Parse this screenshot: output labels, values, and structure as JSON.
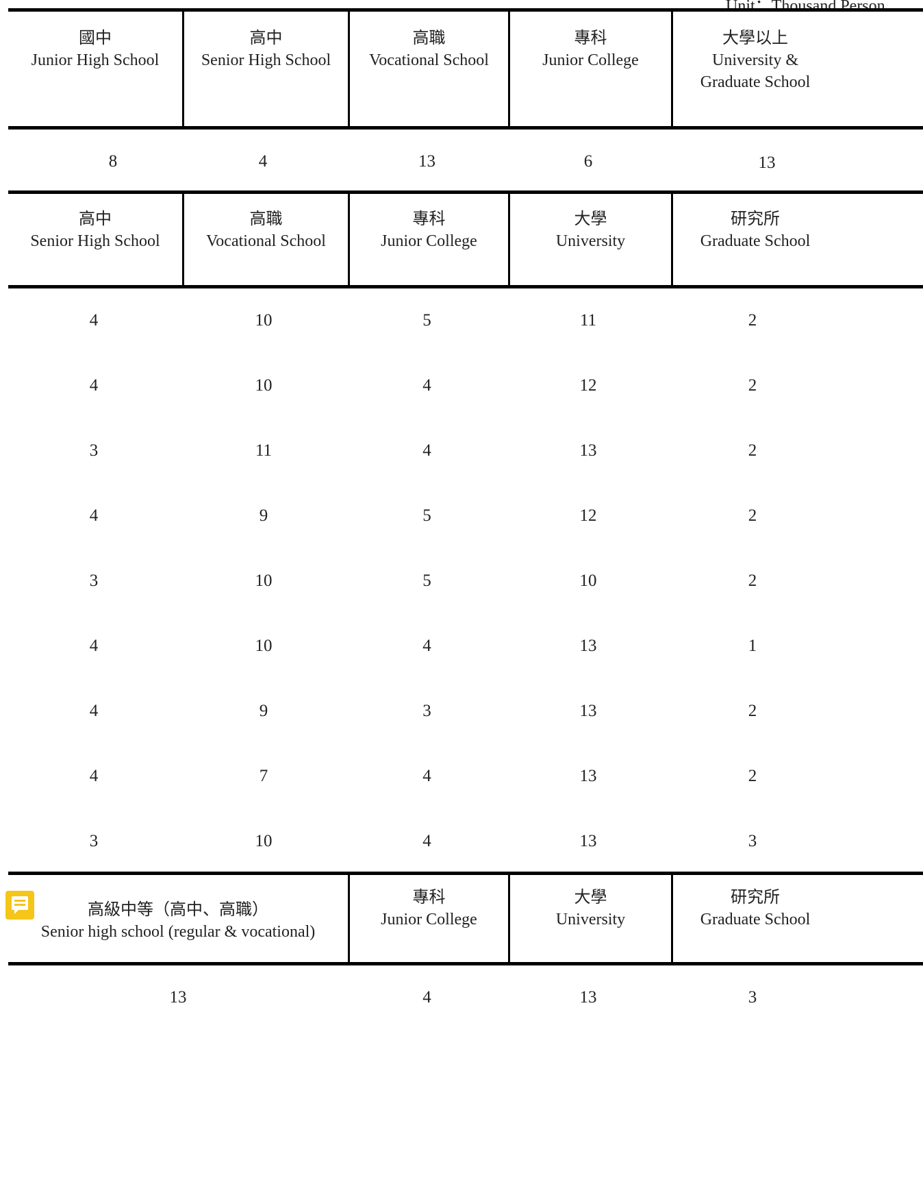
{
  "unit_label": "Unit：Thousand Person",
  "table1": {
    "headers": [
      {
        "zh": "國中",
        "en": [
          "Junior High School"
        ]
      },
      {
        "zh": "高中",
        "en": [
          "Senior High School"
        ]
      },
      {
        "zh": "高職",
        "en": [
          "Vocational School"
        ]
      },
      {
        "zh": "專科",
        "en": [
          "Junior College"
        ]
      },
      {
        "zh": "大學以上",
        "en": [
          "University &",
          "Graduate School"
        ]
      }
    ],
    "values": [
      "8",
      "4",
      "13",
      "6",
      "13"
    ]
  },
  "table2": {
    "headers": [
      {
        "zh": "高中",
        "en": [
          "Senior High School"
        ]
      },
      {
        "zh": "高職",
        "en": [
          "Vocational School"
        ]
      },
      {
        "zh": "專科",
        "en": [
          "Junior College"
        ]
      },
      {
        "zh": "大學",
        "en": [
          "University"
        ]
      },
      {
        "zh": "研究所",
        "en": [
          "Graduate School"
        ]
      }
    ],
    "rows": [
      [
        "4",
        "10",
        "5",
        "11",
        "2"
      ],
      [
        "4",
        "10",
        "4",
        "12",
        "2"
      ],
      [
        "3",
        "11",
        "4",
        "13",
        "2"
      ],
      [
        "4",
        "9",
        "5",
        "12",
        "2"
      ],
      [
        "3",
        "10",
        "5",
        "10",
        "2"
      ],
      [
        "4",
        "10",
        "4",
        "13",
        "1"
      ],
      [
        "4",
        "9",
        "3",
        "13",
        "2"
      ],
      [
        "4",
        "7",
        "4",
        "13",
        "2"
      ],
      [
        "3",
        "10",
        "4",
        "13",
        "3"
      ]
    ]
  },
  "table3": {
    "headers": [
      {
        "zh": "高級中等（高中、高職）",
        "en": [
          "Senior high school (regular & vocational)"
        ]
      },
      {
        "zh": "專科",
        "en": [
          "Junior College"
        ]
      },
      {
        "zh": "大學",
        "en": [
          "University"
        ]
      },
      {
        "zh": "研究所",
        "en": [
          "Graduate School"
        ]
      }
    ],
    "values": [
      "13",
      "4",
      "13",
      "3"
    ]
  },
  "icons": {
    "note": "comment-note-icon",
    "note_color": "#f5c518"
  }
}
